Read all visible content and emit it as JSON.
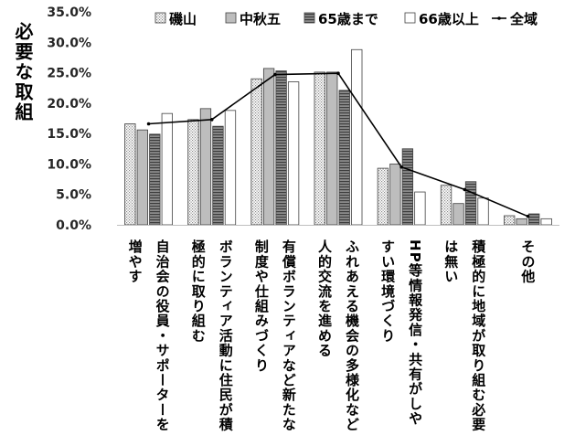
{
  "chart_data": {
    "type": "bar",
    "ylabel": "必要な取組",
    "ylim": [
      0,
      35
    ],
    "y_ticks": [
      "0.0%",
      "5.0%",
      "10.0%",
      "15.0%",
      "20.0%",
      "25.0%",
      "30.0%",
      "35.0%"
    ],
    "grid": false,
    "legend_position": "top",
    "categories": [
      [
        "自治会の役員・サポーターを",
        "増やす"
      ],
      [
        "ボランティア活動に住民が積",
        "極的に取り組む"
      ],
      [
        "有償ボランティアなど新たな",
        "制度や仕組みづくり"
      ],
      [
        "ふれあえる機会の多様化など",
        "人的交流を進める"
      ],
      [
        "HP等情報発信・共有がしや",
        "すい環境づくり"
      ],
      [
        "積極的に地域が取り組む必要",
        "は無い"
      ],
      [
        "その他"
      ]
    ],
    "series": [
      {
        "name": "磯山",
        "type": "bar",
        "color": "#e6e6e6",
        "pattern": "dots",
        "values": [
          16.6,
          17.3,
          24.0,
          25.1,
          9.3,
          6.5,
          1.5
        ]
      },
      {
        "name": "中秋五",
        "type": "bar",
        "color": "#bdbdbd",
        "pattern": "solid",
        "values": [
          15.6,
          19.1,
          25.7,
          25.1,
          10.0,
          3.5,
          1.0
        ]
      },
      {
        "name": "65歳まで",
        "type": "bar",
        "color": "#6e6e6e",
        "pattern": "hlines",
        "values": [
          14.9,
          16.2,
          25.3,
          22.1,
          12.5,
          7.1,
          1.8
        ]
      },
      {
        "name": "66歳以上",
        "type": "bar",
        "color": "#ffffff",
        "pattern": "solid",
        "values": [
          18.3,
          18.8,
          23.5,
          28.8,
          5.4,
          4.4,
          1.0
        ]
      },
      {
        "name": "全域",
        "type": "line",
        "color": "#000000",
        "values": [
          16.6,
          17.3,
          24.7,
          24.9,
          9.5,
          5.8,
          1.4
        ]
      }
    ]
  }
}
